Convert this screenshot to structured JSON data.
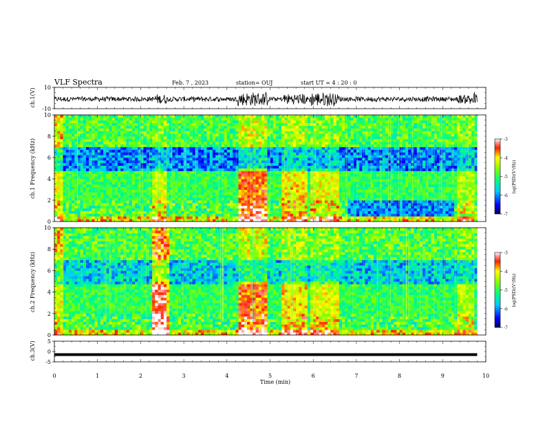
{
  "header": {
    "title": "VLF Spectra",
    "date": "Feb. 7 , 2023",
    "station": "station= OUJ",
    "start": "start  UT =   4 : 20 : 0"
  },
  "chart_data": [
    {
      "type": "line",
      "ylabel": "ch.1(V)",
      "ylim": [
        -10,
        10
      ],
      "yticks": [
        "10",
        "-10"
      ],
      "xlim": [
        0,
        10
      ],
      "description_series": "ch.1 waveform"
    },
    {
      "type": "heatmap",
      "ylabel": "ch.1 Frequency (kHz)",
      "ylim": [
        0,
        10
      ],
      "yticks": [
        "0",
        "2",
        "4",
        "6",
        "8",
        "10"
      ],
      "xlim": [
        0,
        10
      ],
      "colorbar": {
        "label": "log(PSD)(V²/Hz)",
        "range": [
          -7,
          -3
        ],
        "ticks": [
          "-3",
          "-4",
          "-5",
          "-6",
          "-7"
        ]
      }
    },
    {
      "type": "heatmap",
      "ylabel": "ch.2 Frequency (kHz)",
      "ylim": [
        0,
        10
      ],
      "yticks": [
        "0",
        "2",
        "4",
        "6",
        "8",
        "10"
      ],
      "xlim": [
        0,
        10
      ],
      "colorbar": {
        "label": "log(PSD)(V²/Hz)",
        "range": [
          -7,
          -3
        ],
        "ticks": [
          "-3",
          "-4",
          "-5",
          "-6",
          "-7"
        ]
      }
    },
    {
      "type": "line",
      "ylabel": "ch.3(V)",
      "ylim": [
        -5,
        5
      ],
      "yticks": [
        "5",
        "0",
        "-5"
      ],
      "xlim": [
        0,
        9.8
      ],
      "constant_value": -1.5
    }
  ],
  "xaxis": {
    "label": "Time (min)",
    "range": [
      0,
      10
    ],
    "ticks": [
      "0",
      "1",
      "2",
      "3",
      "4",
      "5",
      "6",
      "7",
      "8",
      "9",
      "10"
    ]
  },
  "colors": {
    "waveform": "#000000",
    "frame": "#000000"
  }
}
